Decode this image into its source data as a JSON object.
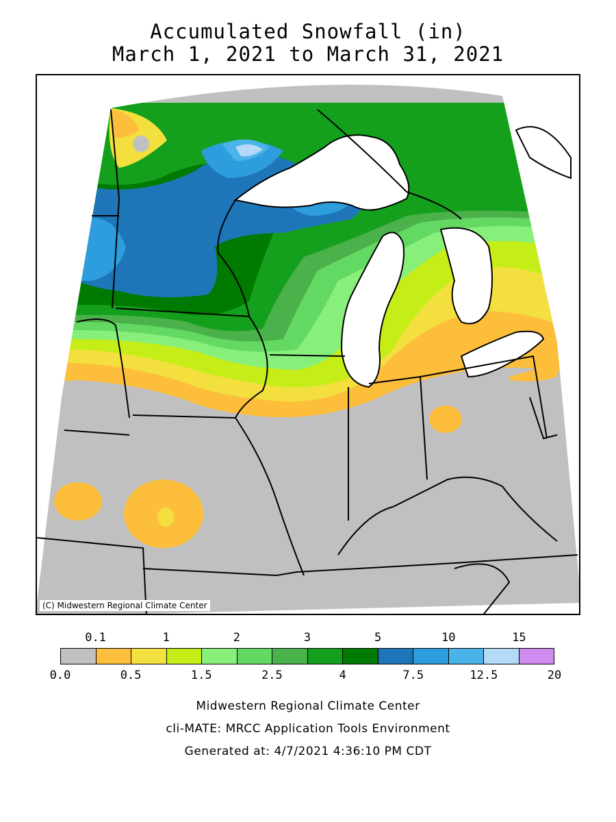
{
  "title": {
    "line1": "Accumulated Snowfall (in)",
    "line2": "March 1, 2021 to March 31, 2021"
  },
  "map": {
    "credit": "(C) Midwestern Regional Climate Center",
    "background_color": "#c0c0c0",
    "lake_color": "#ffffff"
  },
  "legend": {
    "colors": [
      "#c0c0c0",
      "#fdbe3c",
      "#f3e03e",
      "#c5ee19",
      "#88ef7a",
      "#63d964",
      "#4bb14b",
      "#14a01c",
      "#007a00",
      "#1e76b9",
      "#2e9ddd",
      "#4ab3ea",
      "#b4daf7",
      "#d18bee"
    ],
    "top_labels": [
      "0.1",
      "1",
      "2",
      "3",
      "5",
      "10",
      "15"
    ],
    "bottom_labels": [
      "0.0",
      "0.5",
      "1.5",
      "2.5",
      "4",
      "7.5",
      "12.5",
      "20"
    ]
  },
  "footer": {
    "line1": "Midwestern Regional Climate Center",
    "line2": "cli-MATE: MRCC Application Tools Environment",
    "line3": "Generated at: 4/7/2021 4:36:10 PM CDT"
  }
}
